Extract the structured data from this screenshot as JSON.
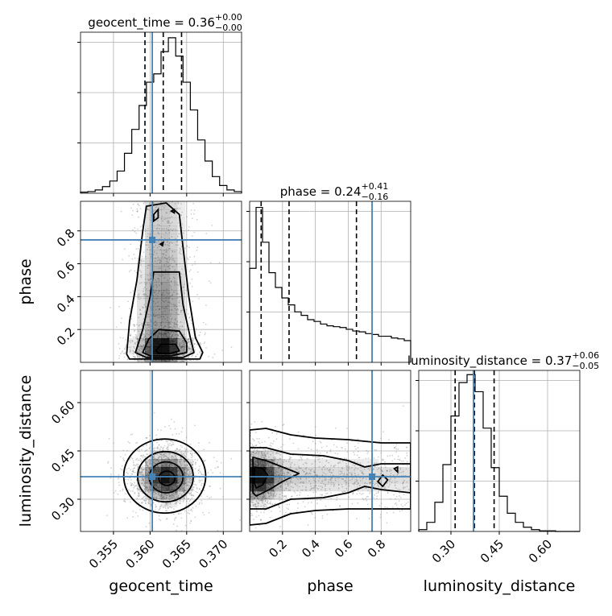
{
  "chart_data": {
    "type": "corner",
    "parameters": [
      "geocent_time",
      "phase",
      "luminosity_distance"
    ],
    "colors": {
      "truth": "#4682b4",
      "histogram": "#000000",
      "density": "#000000",
      "samples": "#7f7f7f",
      "grid": "#b0b0b0"
    },
    "grid": true,
    "truths": {
      "geocent_time": 0.3603,
      "phase": 0.745,
      "luminosity_distance": 0.37
    },
    "panels": {
      "geocent_time": {
        "title": {
          "main": "geocent_time = 0.36",
          "sup": "+0.00",
          "sub": "−0.00"
        },
        "range": [
          0.3505,
          0.3725
        ],
        "ticks": [
          0.355,
          0.36,
          0.365,
          0.37
        ],
        "tick_labels": [
          "0.355",
          "0.360",
          "0.365",
          "0.370"
        ],
        "quantiles": [
          0.3593,
          0.3618,
          0.3643
        ],
        "hist_counts": [
          2,
          3,
          6,
          12,
          22,
          40,
          72,
          115,
          158,
          200,
          215,
          255,
          280,
          247,
          200,
          150,
          96,
          58,
          30,
          14,
          6,
          3
        ],
        "hist_ylim": [
          0,
          290
        ]
      },
      "phase": {
        "title": {
          "main": "phase = 0.24",
          "sup": "+0.41",
          "sub": "−0.16"
        },
        "range": [
          0.0,
          0.98
        ],
        "ticks": [
          0.2,
          0.4,
          0.6,
          0.8
        ],
        "tick_labels": [
          "0.2",
          "0.4",
          "0.6",
          "0.8"
        ],
        "quantiles": [
          0.07,
          0.24,
          0.65
        ],
        "hist_counts": [
          108,
          178,
          138,
          103,
          86,
          74,
          66,
          58,
          54,
          49,
          47,
          44,
          42,
          41,
          40,
          38,
          36,
          35,
          33,
          32,
          30,
          30,
          28,
          27,
          25
        ],
        "hist_ylim": [
          0,
          185
        ]
      },
      "luminosity_distance": {
        "title": {
          "main": "luminosity_distance = 0.37",
          "sup": "+0.06",
          "sub": "−0.05"
        },
        "range": [
          0.2,
          0.7
        ],
        "ticks": [
          0.3,
          0.45,
          0.6
        ],
        "tick_labels": [
          "0.30",
          "0.45",
          "0.60"
        ],
        "quantiles": [
          0.313,
          0.373,
          0.434
        ],
        "hist_counts": [
          3,
          15,
          48,
          110,
          190,
          245,
          258,
          230,
          170,
          105,
          58,
          30,
          15,
          7,
          3,
          1,
          1,
          0,
          0,
          0
        ],
        "hist_ylim": [
          0,
          265
        ]
      }
    },
    "pairs": [
      {
        "x": "geocent_time",
        "y": "phase",
        "peak": [
          0.3623,
          0.09
        ]
      },
      {
        "x": "geocent_time",
        "y": "luminosity_distance",
        "peak": [
          0.3623,
          0.365
        ]
      },
      {
        "x": "phase",
        "y": "luminosity_distance",
        "peak": [
          0.06,
          0.37
        ]
      }
    ],
    "axis_labels": {
      "x": [
        "geocent_time",
        "phase",
        "luminosity_distance"
      ],
      "y": [
        "phase",
        "luminosity_distance"
      ]
    }
  }
}
